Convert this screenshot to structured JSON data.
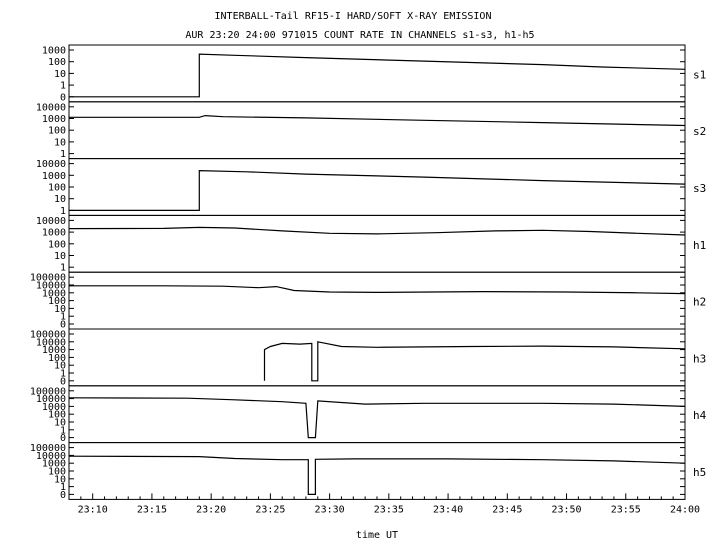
{
  "chart_data": {
    "type": "line",
    "title": "INTERBALL-Tail RF15-I HARD/SOFT X-RAY EMISSION",
    "subtitle": "AUR 23:20 24:00 971015  COUNT RATE IN CHANNELS s1-s3, h1-h5",
    "xlabel": "time UT",
    "x_ticks": [
      "23:10",
      "23:15",
      "23:20",
      "23:25",
      "23:30",
      "23:35",
      "23:40",
      "23:45",
      "23:50",
      "23:55",
      "24:00"
    ],
    "x_range_minutes": [
      0,
      52
    ],
    "panels": [
      {
        "name": "s1",
        "y_scale": "log",
        "y_ticks": [
          "1000",
          "100",
          "10",
          "1",
          "0"
        ],
        "y_max_decades": 3,
        "series": [
          [
            0,
            0
          ],
          [
            11,
            0
          ],
          [
            11,
            2.65
          ],
          [
            14,
            2.55
          ],
          [
            20,
            2.35
          ],
          [
            25,
            2.2
          ],
          [
            30,
            2.05
          ],
          [
            35,
            1.9
          ],
          [
            40,
            1.75
          ],
          [
            45,
            1.55
          ],
          [
            52,
            1.35
          ]
        ]
      },
      {
        "name": "s2",
        "y_scale": "log",
        "y_ticks": [
          "10000",
          "1000",
          "100",
          "10",
          "1"
        ],
        "y_max_decades": 4,
        "series": [
          [
            0,
            3.1
          ],
          [
            11,
            3.1
          ],
          [
            11.5,
            3.25
          ],
          [
            13,
            3.15
          ],
          [
            20,
            3.05
          ],
          [
            30,
            2.85
          ],
          [
            40,
            2.65
          ],
          [
            52,
            2.4
          ]
        ]
      },
      {
        "name": "s3",
        "y_scale": "log",
        "y_ticks": [
          "10000",
          "1000",
          "100",
          "10",
          "1"
        ],
        "y_max_decades": 4,
        "series": [
          [
            0,
            0
          ],
          [
            11,
            0
          ],
          [
            11,
            3.4
          ],
          [
            15,
            3.3
          ],
          [
            20,
            3.1
          ],
          [
            30,
            2.85
          ],
          [
            40,
            2.55
          ],
          [
            52,
            2.25
          ]
        ]
      },
      {
        "name": "h1",
        "y_scale": "log",
        "y_ticks": [
          "10000",
          "1000",
          "100",
          "10",
          "1"
        ],
        "y_max_decades": 4,
        "series": [
          [
            0,
            3.3
          ],
          [
            8,
            3.32
          ],
          [
            11,
            3.4
          ],
          [
            14,
            3.35
          ],
          [
            18,
            3.1
          ],
          [
            22,
            2.9
          ],
          [
            26,
            2.85
          ],
          [
            31,
            2.95
          ],
          [
            36,
            3.1
          ],
          [
            40,
            3.15
          ],
          [
            44,
            3.05
          ],
          [
            48,
            2.9
          ],
          [
            52,
            2.75
          ]
        ]
      },
      {
        "name": "h2",
        "y_scale": "log",
        "y_ticks": [
          "100000",
          "10000",
          "1000",
          "100",
          "10",
          "1",
          "0"
        ],
        "y_max_decades": 5,
        "series": [
          [
            0,
            3.9
          ],
          [
            8,
            3.9
          ],
          [
            13,
            3.85
          ],
          [
            16,
            3.65
          ],
          [
            17.5,
            3.8
          ],
          [
            19,
            3.3
          ],
          [
            22,
            3.1
          ],
          [
            26,
            3.05
          ],
          [
            35,
            3.15
          ],
          [
            42,
            3.1
          ],
          [
            48,
            3.0
          ],
          [
            52,
            2.9
          ]
        ]
      },
      {
        "name": "h3",
        "y_scale": "log",
        "y_ticks": [
          "100000",
          "10000",
          "1000",
          "100",
          "10",
          "1",
          "0"
        ],
        "y_max_decades": 5,
        "series": [
          [
            16.5,
            0
          ],
          [
            16.5,
            3.0
          ],
          [
            17,
            3.4
          ],
          [
            18,
            3.8
          ],
          [
            19.5,
            3.7
          ],
          [
            20.5,
            3.8
          ],
          [
            20.5,
            0
          ],
          [
            21,
            0
          ],
          [
            21,
            4.0
          ],
          [
            23,
            3.4
          ],
          [
            26,
            3.3
          ],
          [
            34,
            3.4
          ],
          [
            40,
            3.45
          ],
          [
            46,
            3.35
          ],
          [
            52,
            3.1
          ]
        ]
      },
      {
        "name": "h4",
        "y_scale": "log",
        "y_ticks": [
          "100000",
          "10000",
          "1000",
          "100",
          "10",
          "1",
          "0"
        ],
        "y_max_decades": 5,
        "series": [
          [
            0,
            4.1
          ],
          [
            10,
            4.05
          ],
          [
            14,
            3.85
          ],
          [
            18,
            3.6
          ],
          [
            20,
            3.4
          ],
          [
            20.2,
            0
          ],
          [
            20.8,
            0
          ],
          [
            21,
            3.7
          ],
          [
            25,
            3.3
          ],
          [
            30,
            3.4
          ],
          [
            40,
            3.4
          ],
          [
            46,
            3.3
          ],
          [
            52,
            3.0
          ]
        ]
      },
      {
        "name": "h5",
        "y_scale": "log",
        "y_ticks": [
          "100000",
          "10000",
          "1000",
          "100",
          "10",
          "1",
          "0"
        ],
        "y_max_decades": 5,
        "series": [
          [
            0,
            3.9
          ],
          [
            11,
            3.85
          ],
          [
            14,
            3.6
          ],
          [
            18,
            3.45
          ],
          [
            20.2,
            3.45
          ],
          [
            20.2,
            0
          ],
          [
            20.8,
            0
          ],
          [
            20.8,
            3.5
          ],
          [
            24,
            3.55
          ],
          [
            32,
            3.55
          ],
          [
            40,
            3.45
          ],
          [
            46,
            3.3
          ],
          [
            52,
            3.0
          ]
        ]
      }
    ]
  }
}
